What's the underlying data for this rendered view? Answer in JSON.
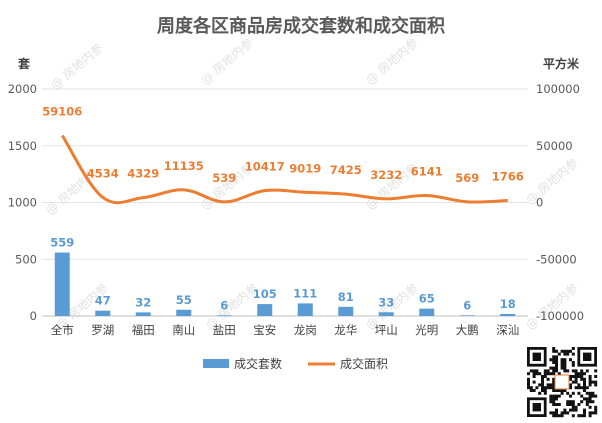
{
  "chart_data": {
    "type": "bar+line",
    "title": "周度各区商品房成交套数和成交面积",
    "y_left_label": "套",
    "y_right_label": "平方米",
    "y_left_ticks": [
      "2000",
      "1500",
      "1000",
      "500",
      "0"
    ],
    "y_right_ticks": [
      "100000",
      "50000",
      "0",
      "-50000",
      "-100000"
    ],
    "ylim_left": [
      0,
      2000
    ],
    "ylim_right": [
      -100000,
      100000
    ],
    "categories": [
      "全市",
      "罗湖",
      "福田",
      "南山",
      "盐田",
      "宝安",
      "龙岗",
      "龙华",
      "坪山",
      "光明",
      "大鹏",
      "深汕"
    ],
    "series": [
      {
        "name": "成交套数",
        "type": "bar",
        "axis": "left",
        "color": "#5b9bd5",
        "values": [
          559,
          47,
          32,
          55,
          6,
          105,
          111,
          81,
          33,
          65,
          6,
          18
        ],
        "labels": [
          "559",
          "47",
          "32",
          "55",
          "6",
          "105",
          "111",
          "81",
          "33",
          "65",
          "6",
          "18"
        ]
      },
      {
        "name": "成交面积",
        "type": "line",
        "axis": "right",
        "color": "#ed7d31",
        "values": [
          59106,
          4534,
          4329,
          11135,
          539,
          10417,
          9019,
          7425,
          3232,
          6141,
          569,
          1766
        ],
        "labels": [
          "59106",
          "4534",
          "4329",
          "11135",
          "539",
          "10417",
          "9019",
          "7425",
          "3232",
          "6141",
          "569",
          "1766"
        ]
      }
    ],
    "legend": {
      "position": "bottom"
    },
    "grid": true
  },
  "watermark": {
    "text": "房地内参"
  },
  "qr_icon": "qr-code-icon"
}
